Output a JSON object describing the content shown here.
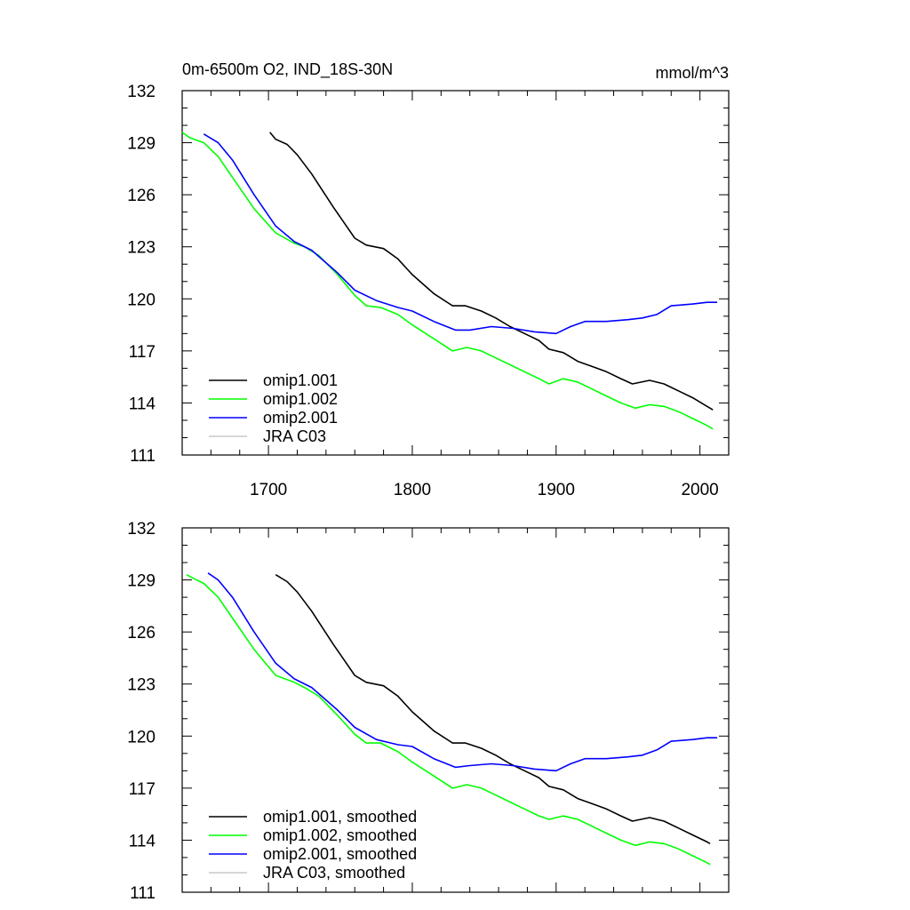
{
  "chart_data": [
    {
      "type": "line",
      "title": "0m-6500m O2, IND_18S-30N",
      "units": "mmol/m^3",
      "xlabel": "",
      "ylabel": "",
      "xlim": [
        1640,
        2020
      ],
      "ylim": [
        111,
        132
      ],
      "x_ticks": [
        1700,
        1800,
        1900,
        2000
      ],
      "y_ticks": [
        111,
        114,
        117,
        120,
        123,
        126,
        129,
        132
      ],
      "show_x_tick_labels": true,
      "grid": false,
      "legend_position": "bottom-left",
      "series": [
        {
          "name": "omip1.001",
          "color": "#000000",
          "x": [
            1701,
            1705,
            1713,
            1720,
            1730,
            1745,
            1760,
            1768,
            1780,
            1790,
            1800,
            1815,
            1828,
            1837,
            1848,
            1858,
            1868,
            1878,
            1888,
            1895,
            1905,
            1915,
            1925,
            1935,
            1945,
            1953,
            1965,
            1975,
            1985,
            1995,
            2005,
            2009
          ],
          "y": [
            129.6,
            129.2,
            128.9,
            128.3,
            127.2,
            125.3,
            123.5,
            123.1,
            122.9,
            122.3,
            121.4,
            120.3,
            119.6,
            119.6,
            119.3,
            118.9,
            118.4,
            118.0,
            117.6,
            117.1,
            116.9,
            116.4,
            116.1,
            115.8,
            115.4,
            115.1,
            115.3,
            115.1,
            114.7,
            114.3,
            113.8,
            113.6
          ]
        },
        {
          "name": "omip1.002",
          "color": "#00ff00",
          "x": [
            1640,
            1645,
            1655,
            1665,
            1675,
            1690,
            1705,
            1718,
            1725,
            1735,
            1748,
            1760,
            1768,
            1778,
            1790,
            1800,
            1815,
            1828,
            1838,
            1848,
            1858,
            1868,
            1878,
            1888,
            1895,
            1905,
            1915,
            1925,
            1935,
            1945,
            1955,
            1965,
            1975,
            1985,
            1995,
            2005,
            2009
          ],
          "y": [
            129.6,
            129.3,
            129.0,
            128.2,
            127.0,
            125.2,
            123.8,
            123.2,
            123.0,
            122.5,
            121.4,
            120.2,
            119.6,
            119.5,
            119.1,
            118.5,
            117.7,
            117.0,
            117.2,
            117.0,
            116.6,
            116.2,
            115.8,
            115.4,
            115.1,
            115.4,
            115.2,
            114.8,
            114.4,
            114.0,
            113.7,
            113.9,
            113.8,
            113.5,
            113.1,
            112.7,
            112.5
          ]
        },
        {
          "name": "omip2.001",
          "color": "#0000ff",
          "x": [
            1655,
            1665,
            1675,
            1690,
            1705,
            1718,
            1730,
            1748,
            1760,
            1775,
            1790,
            1800,
            1815,
            1830,
            1840,
            1855,
            1870,
            1885,
            1900,
            1910,
            1920,
            1935,
            1950,
            1960,
            1970,
            1980,
            1995,
            2005,
            2012
          ],
          "y": [
            129.5,
            129.0,
            128.0,
            126.0,
            124.2,
            123.3,
            122.8,
            121.5,
            120.5,
            119.9,
            119.5,
            119.3,
            118.7,
            118.2,
            118.2,
            118.4,
            118.3,
            118.1,
            118.0,
            118.4,
            118.7,
            118.7,
            118.8,
            118.9,
            119.1,
            119.6,
            119.7,
            119.8,
            119.8
          ]
        },
        {
          "name": "JRA C03",
          "color": "#c8c8c8",
          "x": [],
          "y": []
        }
      ]
    },
    {
      "type": "line",
      "title": "",
      "units": "",
      "xlabel": "",
      "ylabel": "",
      "xlim": [
        1640,
        2020
      ],
      "ylim": [
        111,
        132
      ],
      "x_ticks": [
        1700,
        1800,
        1900,
        2000
      ],
      "y_ticks": [
        111,
        114,
        117,
        120,
        123,
        126,
        129,
        132
      ],
      "show_x_tick_labels": false,
      "grid": false,
      "legend_position": "bottom-left",
      "series": [
        {
          "name": "omip1.001, smoothed",
          "color": "#000000",
          "x": [
            1705,
            1713,
            1720,
            1730,
            1745,
            1760,
            1768,
            1780,
            1790,
            1800,
            1815,
            1828,
            1837,
            1848,
            1858,
            1868,
            1878,
            1888,
            1895,
            1905,
            1915,
            1925,
            1935,
            1945,
            1953,
            1965,
            1975,
            1985,
            1995,
            2005,
            2007
          ],
          "y": [
            129.3,
            128.9,
            128.3,
            127.2,
            125.3,
            123.5,
            123.1,
            122.9,
            122.3,
            121.4,
            120.3,
            119.6,
            119.6,
            119.3,
            118.9,
            118.4,
            118.0,
            117.6,
            117.1,
            116.9,
            116.4,
            116.1,
            115.8,
            115.4,
            115.1,
            115.3,
            115.1,
            114.7,
            114.3,
            113.9,
            113.8
          ]
        },
        {
          "name": "omip1.002, smoothed",
          "color": "#00ff00",
          "x": [
            1643,
            1650,
            1655,
            1665,
            1675,
            1690,
            1705,
            1718,
            1725,
            1735,
            1748,
            1760,
            1768,
            1778,
            1790,
            1800,
            1815,
            1828,
            1838,
            1848,
            1858,
            1868,
            1878,
            1888,
            1895,
            1905,
            1915,
            1925,
            1935,
            1945,
            1955,
            1965,
            1975,
            1985,
            1995,
            2005,
            2007
          ],
          "y": [
            129.3,
            129.0,
            128.8,
            128.0,
            126.8,
            125.0,
            123.5,
            123.1,
            122.8,
            122.3,
            121.2,
            120.1,
            119.6,
            119.6,
            119.1,
            118.5,
            117.7,
            117.0,
            117.2,
            117.0,
            116.6,
            116.2,
            115.8,
            115.4,
            115.2,
            115.4,
            115.2,
            114.8,
            114.4,
            114.0,
            113.7,
            113.9,
            113.8,
            113.5,
            113.1,
            112.7,
            112.6
          ]
        },
        {
          "name": "omip2.001, smoothed",
          "color": "#0000ff",
          "x": [
            1658,
            1665,
            1675,
            1690,
            1705,
            1718,
            1730,
            1748,
            1760,
            1775,
            1790,
            1800,
            1815,
            1830,
            1840,
            1855,
            1870,
            1885,
            1900,
            1910,
            1920,
            1935,
            1950,
            1960,
            1970,
            1980,
            1995,
            2005,
            2012
          ],
          "y": [
            129.4,
            129.0,
            128.0,
            126.0,
            124.2,
            123.3,
            122.8,
            121.5,
            120.5,
            119.8,
            119.5,
            119.4,
            118.7,
            118.2,
            118.3,
            118.4,
            118.3,
            118.1,
            118.0,
            118.4,
            118.7,
            118.7,
            118.8,
            118.9,
            119.2,
            119.7,
            119.8,
            119.9,
            119.9
          ]
        },
        {
          "name": "JRA C03, smoothed",
          "color": "#c8c8c8",
          "x": [],
          "y": []
        }
      ]
    }
  ]
}
